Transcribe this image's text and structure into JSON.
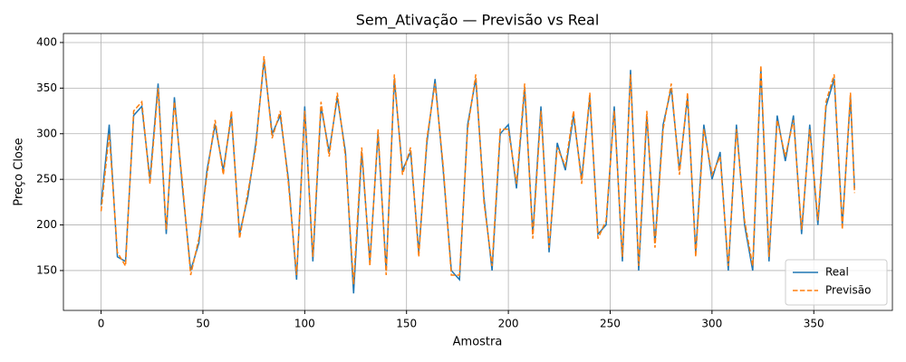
{
  "chart_data": {
    "type": "line",
    "title": "Sem_Ativação — Previsão vs Real",
    "x_label": "Amostra",
    "y_label": "Preço Close",
    "x": [
      0,
      4,
      8,
      12,
      16,
      20,
      24,
      28,
      32,
      36,
      40,
      44,
      48,
      52,
      56,
      60,
      64,
      68,
      72,
      76,
      80,
      84,
      88,
      92,
      96,
      100,
      104,
      108,
      112,
      116,
      120,
      124,
      128,
      132,
      136,
      140,
      144,
      148,
      152,
      156,
      160,
      164,
      168,
      172,
      176,
      180,
      184,
      188,
      192,
      196,
      200,
      204,
      208,
      212,
      216,
      220,
      224,
      228,
      232,
      236,
      240,
      244,
      248,
      252,
      256,
      260,
      264,
      268,
      272,
      276,
      280,
      284,
      288,
      292,
      296,
      300,
      304,
      308,
      312,
      316,
      320,
      324,
      328,
      332,
      336,
      340,
      344,
      348,
      352,
      356,
      360,
      364,
      368,
      370
    ],
    "series": [
      {
        "name": "Real",
        "color": "#1f77b4",
        "dash": false,
        "values": [
          222,
          310,
          165,
          160,
          320,
          330,
          250,
          355,
          190,
          340,
          240,
          150,
          180,
          260,
          310,
          260,
          320,
          190,
          230,
          290,
          380,
          300,
          320,
          250,
          140,
          330,
          160,
          330,
          280,
          340,
          280,
          125,
          280,
          160,
          300,
          150,
          360,
          260,
          280,
          170,
          290,
          360,
          260,
          150,
          140,
          310,
          360,
          230,
          150,
          300,
          310,
          240,
          350,
          190,
          330,
          170,
          290,
          260,
          320,
          250,
          340,
          190,
          200,
          330,
          160,
          370,
          150,
          320,
          180,
          310,
          350,
          260,
          340,
          170,
          310,
          250,
          280,
          150,
          310,
          200,
          150,
          370,
          160,
          320,
          270,
          320,
          190,
          310,
          200,
          330,
          360,
          200,
          340,
          240
        ]
      },
      {
        "name": "Previsão",
        "color": "#ff7f0e",
        "dash": true,
        "values": [
          215,
          300,
          170,
          155,
          325,
          335,
          245,
          350,
          195,
          335,
          245,
          145,
          185,
          255,
          315,
          255,
          325,
          185,
          235,
          285,
          385,
          295,
          325,
          245,
          145,
          325,
          165,
          335,
          275,
          345,
          275,
          135,
          285,
          155,
          305,
          145,
          365,
          255,
          285,
          165,
          295,
          355,
          265,
          145,
          145,
          305,
          365,
          225,
          155,
          305,
          305,
          245,
          355,
          185,
          325,
          175,
          285,
          265,
          325,
          245,
          345,
          185,
          205,
          325,
          165,
          365,
          155,
          325,
          175,
          305,
          355,
          255,
          345,
          165,
          305,
          255,
          275,
          155,
          305,
          205,
          155,
          375,
          165,
          315,
          275,
          315,
          195,
          305,
          205,
          335,
          365,
          195,
          345,
          235
        ]
      }
    ],
    "xlim": [
      -18.5,
      388.6
    ],
    "ylim": [
      106.3,
      409.9
    ],
    "xticks": [
      0,
      50,
      100,
      150,
      200,
      250,
      300,
      350
    ],
    "yticks": [
      150,
      200,
      250,
      300,
      350,
      400
    ],
    "grid": true,
    "legend": "lower right"
  }
}
